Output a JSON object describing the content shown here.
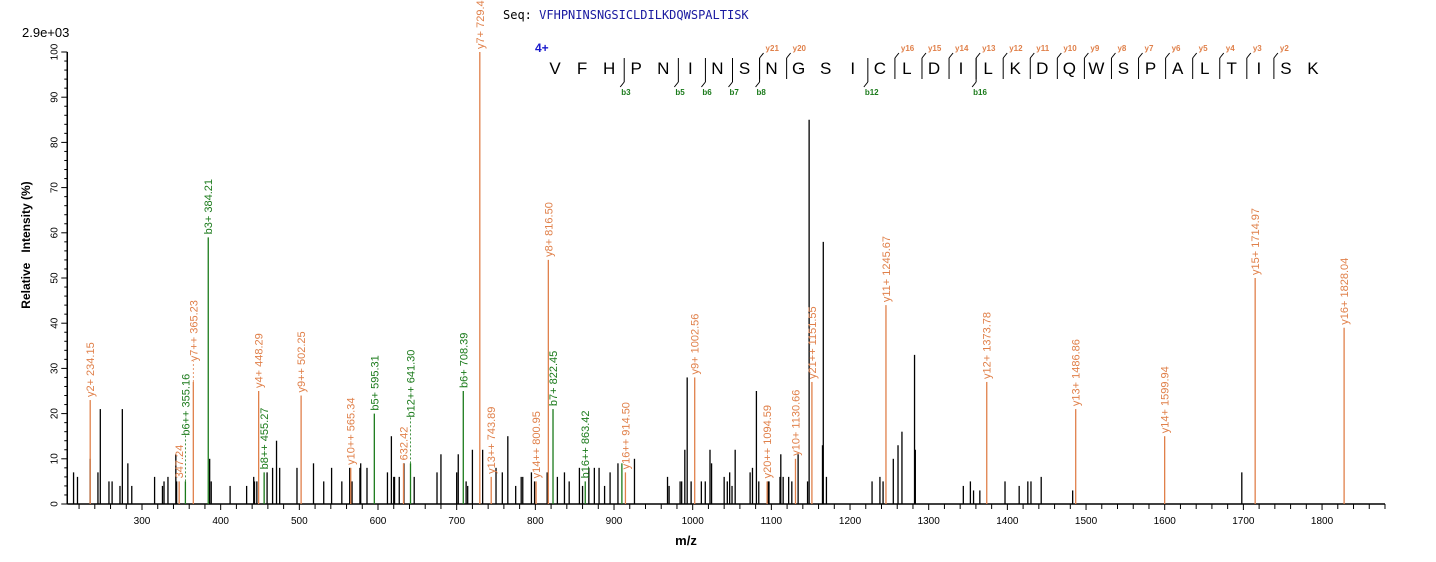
{
  "header": {
    "seq_prefix": "Seq:",
    "sequence": "VFHPNINSNGSICLDILKDQWSPALTISK",
    "max_intensity": "2.9e+03",
    "charge": "4+"
  },
  "fragment_map": {
    "residues": [
      "V",
      "F",
      "H",
      "P",
      "N",
      "I",
      "N",
      "S",
      "N",
      "G",
      "S",
      "I",
      "C",
      "L",
      "D",
      "I",
      "L",
      "K",
      "D",
      "Q",
      "W",
      "S",
      "P",
      "A",
      "L",
      "T",
      "I",
      "S",
      "K"
    ],
    "y_ions": [
      21,
      20,
      16,
      15,
      14,
      13,
      12,
      11,
      10,
      9,
      8,
      7,
      6,
      5,
      4,
      3,
      2
    ],
    "b_ions": [
      3,
      5,
      6,
      7,
      8,
      12,
      16
    ]
  },
  "colors": {
    "y_ion": "#e0804a",
    "b_ion": "#1a7a1a",
    "unassigned": "#000000",
    "charge": "#1a1acc"
  },
  "chart_data": {
    "type": "bar",
    "title": "",
    "xlabel": "m/z",
    "ylabel": "Relative   Intensity (%)",
    "xlim": [
      205,
      1880
    ],
    "ylim": [
      0,
      100
    ],
    "x_ticks": [
      300,
      400,
      500,
      600,
      700,
      800,
      900,
      1000,
      1100,
      1200,
      1300,
      1400,
      1500,
      1600,
      1700,
      1800
    ],
    "y_ticks": [
      0,
      10,
      20,
      30,
      40,
      50,
      60,
      70,
      80,
      90,
      100
    ],
    "grid": false,
    "annotated_peaks": [
      {
        "mz": 234.15,
        "intensity": 23,
        "ion": "y",
        "label": "y2+ 234.15"
      },
      {
        "mz": 347.24,
        "intensity": 5,
        "ion": "y",
        "label": "347.24"
      },
      {
        "mz": 355.16,
        "intensity": 5,
        "ion": "b",
        "label": "b6++ 355.16"
      },
      {
        "mz": 365.23,
        "intensity": 27,
        "ion": "y",
        "label": "y7++ 365.23"
      },
      {
        "mz": 384.21,
        "intensity": 59,
        "ion": "b",
        "label": "b3+ 384.21"
      },
      {
        "mz": 448.29,
        "intensity": 25,
        "ion": "y",
        "label": "y4+ 448.29"
      },
      {
        "mz": 455.27,
        "intensity": 7,
        "ion": "b",
        "label": "b8++ 455.27"
      },
      {
        "mz": 502.25,
        "intensity": 24,
        "ion": "y",
        "label": "y9++ 502.25"
      },
      {
        "mz": 565.34,
        "intensity": 8,
        "ion": "y",
        "label": "y10++ 565.34"
      },
      {
        "mz": 595.31,
        "intensity": 20,
        "ion": "b",
        "label": "b5+ 595.31"
      },
      {
        "mz": 632.42,
        "intensity": 9,
        "ion": "y",
        "label": "632.42"
      },
      {
        "mz": 641.3,
        "intensity": 9,
        "ion": "b",
        "label": "b12++ 641.30"
      },
      {
        "mz": 708.39,
        "intensity": 25,
        "ion": "b",
        "label": "b6+ 708.39"
      },
      {
        "mz": 729.4,
        "intensity": 100,
        "ion": "y",
        "label": "y7+ 729.4"
      },
      {
        "mz": 743.89,
        "intensity": 6,
        "ion": "y",
        "label": "y13++ 743.89"
      },
      {
        "mz": 800.95,
        "intensity": 5,
        "ion": "y",
        "label": "y14++ 800.95"
      },
      {
        "mz": 816.5,
        "intensity": 54,
        "ion": "y",
        "label": "y8+ 816.50"
      },
      {
        "mz": 822.45,
        "intensity": 21,
        "ion": "b",
        "label": "b7+ 822.45"
      },
      {
        "mz": 863.42,
        "intensity": 5,
        "ion": "b",
        "label": "b16++ 863.42"
      },
      {
        "mz": 910.0,
        "intensity": 9,
        "ion": "b",
        "label": ""
      },
      {
        "mz": 914.5,
        "intensity": 7,
        "ion": "y",
        "label": "y16++ 914.50"
      },
      {
        "mz": 1002.56,
        "intensity": 28,
        "ion": "y",
        "label": "y9+ 1002.56"
      },
      {
        "mz": 1094.59,
        "intensity": 5,
        "ion": "y",
        "label": "y20++ 1094.59"
      },
      {
        "mz": 1130.66,
        "intensity": 10,
        "ion": "y",
        "label": "y10+ 1130.66"
      },
      {
        "mz": 1151.55,
        "intensity": 27,
        "ion": "y",
        "label": "y21++ 1151.55"
      },
      {
        "mz": 1245.67,
        "intensity": 44,
        "ion": "y",
        "label": "y11+ 1245.67"
      },
      {
        "mz": 1373.78,
        "intensity": 27,
        "ion": "y",
        "label": "y12+ 1373.78"
      },
      {
        "mz": 1486.86,
        "intensity": 21,
        "ion": "y",
        "label": "y13+ 1486.86"
      },
      {
        "mz": 1599.94,
        "intensity": 15,
        "ion": "y",
        "label": "y14+ 1599.94"
      },
      {
        "mz": 1714.97,
        "intensity": 50,
        "ion": "y",
        "label": "y15+ 1714.97"
      },
      {
        "mz": 1828.04,
        "intensity": 39,
        "ion": "y",
        "label": "y16+ 1828.04"
      }
    ],
    "unassigned_peaks": [
      [
        213,
        7
      ],
      [
        218,
        6
      ],
      [
        234,
        10
      ],
      [
        244,
        7
      ],
      [
        247,
        21
      ],
      [
        258,
        5
      ],
      [
        262,
        5
      ],
      [
        272,
        4
      ],
      [
        275,
        21
      ],
      [
        282,
        9
      ],
      [
        287,
        4
      ],
      [
        316,
        6
      ],
      [
        326,
        4
      ],
      [
        328,
        5
      ],
      [
        333,
        6
      ],
      [
        343,
        11
      ],
      [
        344,
        5
      ],
      [
        386,
        10
      ],
      [
        388,
        5
      ],
      [
        412,
        4
      ],
      [
        433,
        4
      ],
      [
        442,
        6
      ],
      [
        443,
        5
      ],
      [
        446,
        5
      ],
      [
        459,
        7
      ],
      [
        466,
        8
      ],
      [
        471,
        14
      ],
      [
        475,
        8
      ],
      [
        497,
        8
      ],
      [
        518,
        9
      ],
      [
        531,
        5
      ],
      [
        541,
        8
      ],
      [
        554,
        5
      ],
      [
        564,
        8
      ],
      [
        567,
        5
      ],
      [
        577,
        8
      ],
      [
        578,
        9
      ],
      [
        586,
        8
      ],
      [
        612,
        7
      ],
      [
        617,
        15
      ],
      [
        620,
        6
      ],
      [
        621,
        6
      ],
      [
        627,
        6
      ],
      [
        633,
        9
      ],
      [
        646,
        6
      ],
      [
        675,
        7
      ],
      [
        680,
        11
      ],
      [
        700,
        7
      ],
      [
        702,
        11
      ],
      [
        712,
        5
      ],
      [
        714,
        4
      ],
      [
        720,
        12
      ],
      [
        733,
        12
      ],
      [
        750,
        8
      ],
      [
        758,
        7
      ],
      [
        765,
        15
      ],
      [
        775,
        4
      ],
      [
        782,
        6
      ],
      [
        784,
        6
      ],
      [
        795,
        7
      ],
      [
        799,
        5
      ],
      [
        815,
        7
      ],
      [
        828,
        6
      ],
      [
        837,
        7
      ],
      [
        843,
        5
      ],
      [
        856,
        8
      ],
      [
        860,
        4
      ],
      [
        868,
        8
      ],
      [
        875,
        8
      ],
      [
        881,
        8
      ],
      [
        888,
        4
      ],
      [
        895,
        7
      ],
      [
        905,
        9
      ],
      [
        926,
        10
      ],
      [
        968,
        6
      ],
      [
        970,
        4
      ],
      [
        984,
        5
      ],
      [
        986,
        5
      ],
      [
        990,
        12
      ],
      [
        993,
        28
      ],
      [
        998,
        5
      ],
      [
        1011,
        5
      ],
      [
        1016,
        5
      ],
      [
        1022,
        12
      ],
      [
        1024,
        9
      ],
      [
        1040,
        6
      ],
      [
        1044,
        5
      ],
      [
        1047,
        7
      ],
      [
        1050,
        4
      ],
      [
        1054,
        12
      ],
      [
        1073,
        7
      ],
      [
        1076,
        8
      ],
      [
        1081,
        25
      ],
      [
        1084,
        5
      ],
      [
        1096,
        5
      ],
      [
        1097,
        5
      ],
      [
        1111,
        6
      ],
      [
        1112,
        11
      ],
      [
        1115,
        6
      ],
      [
        1122,
        6
      ],
      [
        1126,
        5
      ],
      [
        1134,
        11
      ],
      [
        1146,
        5
      ],
      [
        1148,
        85
      ],
      [
        1165,
        13
      ],
      [
        1166,
        58
      ],
      [
        1170,
        6
      ],
      [
        1228,
        5
      ],
      [
        1238,
        6
      ],
      [
        1242,
        5
      ],
      [
        1255,
        10
      ],
      [
        1261,
        13
      ],
      [
        1266,
        16
      ],
      [
        1282,
        33
      ],
      [
        1283,
        12
      ],
      [
        1344,
        4
      ],
      [
        1353,
        5
      ],
      [
        1357,
        3
      ],
      [
        1365,
        3
      ],
      [
        1397,
        5
      ],
      [
        1415,
        4
      ],
      [
        1426,
        5
      ],
      [
        1430,
        5
      ],
      [
        1443,
        6
      ],
      [
        1483,
        3
      ],
      [
        1698,
        7
      ]
    ]
  }
}
